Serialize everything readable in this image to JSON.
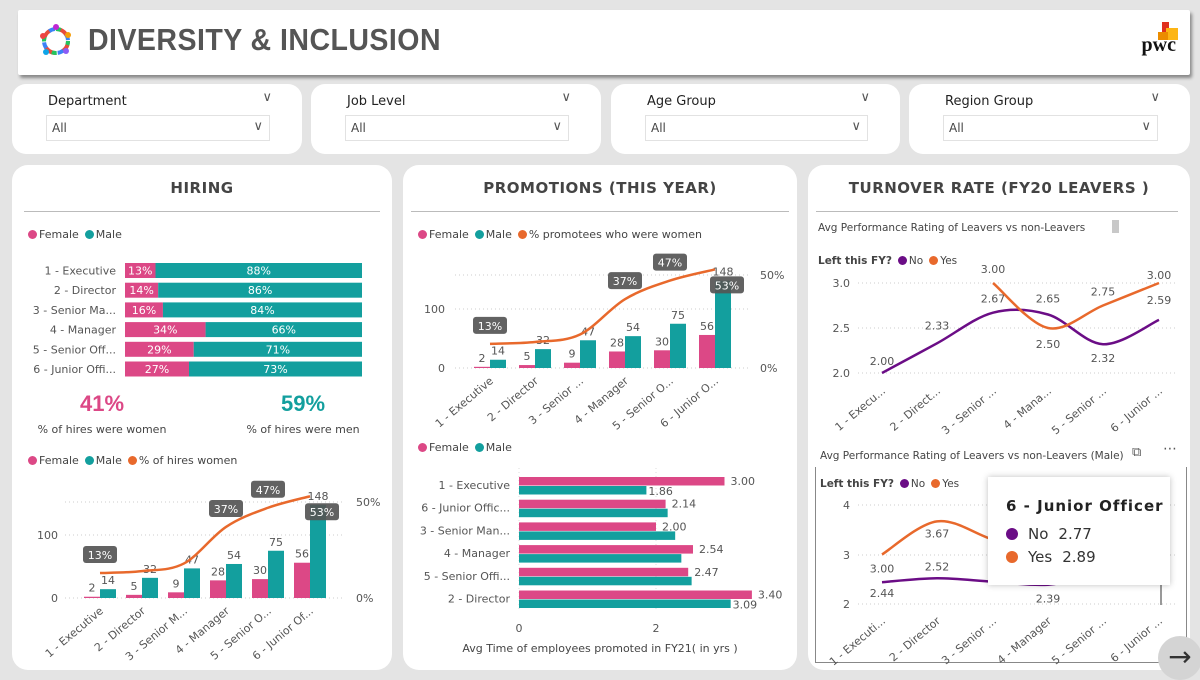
{
  "header": {
    "title": "DIVERSITY & INCLUSION",
    "brand": "pwc"
  },
  "colors": {
    "female": "#DC4886",
    "male": "#139F9E",
    "orange": "#E8692C",
    "purple": "#6B0D86",
    "no": "#6B0D86",
    "yes": "#E8692C"
  },
  "filters": [
    {
      "label": "Department",
      "value": "All"
    },
    {
      "label": "Job Level",
      "value": "All"
    },
    {
      "label": "Age Group",
      "value": "All"
    },
    {
      "label": "Region Group",
      "value": "All"
    }
  ],
  "hiring": {
    "title": "HIRING",
    "legend": [
      "Female",
      "Male"
    ],
    "stacked": {
      "type": "bar",
      "categories": [
        "1 - Executive",
        "2 - Director",
        "3 - Senior Ma...",
        "4 - Manager",
        "5 - Senior Off...",
        "6 - Junior Offi..."
      ],
      "series": [
        {
          "name": "Female",
          "values": [
            13,
            14,
            16,
            34,
            29,
            27
          ]
        },
        {
          "name": "Male",
          "values": [
            88,
            86,
            84,
            66,
            71,
            73
          ]
        }
      ]
    },
    "kpi_women": {
      "value": "41%",
      "label": "% of hires were women"
    },
    "kpi_men": {
      "value": "59%",
      "label": "% of hires were men"
    },
    "combo": {
      "type": "bar",
      "legend": [
        "Female",
        "Male",
        "% of hires women"
      ],
      "categories": [
        "1 - Executive",
        "2 - Director",
        "3 - Senior M...",
        "4 - Manager",
        "5 - Senior O...",
        "6 - Junior Of..."
      ],
      "series": [
        {
          "name": "Female",
          "values": [
            2,
            5,
            9,
            28,
            30,
            56
          ]
        },
        {
          "name": "Male",
          "values": [
            14,
            32,
            47,
            54,
            75,
            148
          ]
        },
        {
          "name": "% of hires women",
          "values": [
            13,
            14,
            18,
            37,
            47,
            53
          ]
        }
      ],
      "pct_labels": [
        "13%",
        "",
        "",
        "37%",
        "47%",
        "53%"
      ],
      "y_ticks": [
        "0",
        "100"
      ],
      "y2_ticks": [
        "0%",
        "50%"
      ]
    }
  },
  "promotions": {
    "title": "PROMOTIONS (THIS YEAR)",
    "combo": {
      "type": "bar",
      "legend": [
        "Female",
        "Male",
        "% promotees who were women"
      ],
      "categories": [
        "1 - Executive",
        "2 - Director",
        "3 - Senior ...",
        "4 - Manager",
        "5 - Senior O...",
        "6 - Junior O..."
      ],
      "series": [
        {
          "name": "Female",
          "values": [
            2,
            5,
            9,
            28,
            30,
            56
          ]
        },
        {
          "name": "Male",
          "values": [
            14,
            32,
            47,
            54,
            75,
            148
          ]
        },
        {
          "name": "% promotees who were women",
          "values": [
            13,
            14,
            18,
            37,
            47,
            53
          ]
        }
      ],
      "pct_labels": [
        "13%",
        "",
        "",
        "37%",
        "47%",
        "53%"
      ],
      "y_ticks": [
        "0",
        "100"
      ],
      "y2_ticks": [
        "0%",
        "50%"
      ]
    },
    "avg_time": {
      "type": "bar",
      "legend": [
        "Female",
        "Male"
      ],
      "categories": [
        "1 - Executive",
        "6 - Junior Offic...",
        "3 - Senior Man...",
        "4 - Manager",
        "5 - Senior Offi...",
        "2 - Director"
      ],
      "series": [
        {
          "name": "Female",
          "values": [
            3.0,
            2.14,
            2.0,
            2.54,
            2.47,
            3.4
          ]
        },
        {
          "name": "Male",
          "values": [
            1.86,
            2.17,
            2.28,
            2.37,
            2.52,
            3.09
          ]
        }
      ],
      "labels_female": [
        "3.00",
        "2.14",
        "2.00",
        "2.54",
        "2.47",
        "3.40"
      ],
      "labels_male": [
        "1.86",
        "",
        "",
        "",
        "",
        "3.09"
      ],
      "x_ticks": [
        "0",
        "2"
      ],
      "xlabel": "Avg Time of employees promoted in FY21( in yrs )"
    }
  },
  "turnover": {
    "title": "TURNOVER RATE (FY20 LEAVERS )",
    "chart1": {
      "type": "line",
      "title": "Avg Performance Rating of Leavers vs non-Leavers",
      "legend_title": "Left this FY?",
      "categories": [
        "1 - Execu...",
        "2 - Direct...",
        "3 - Senior ...",
        "4 - Mana...",
        "5 - Senior ...",
        "6 - Junior ..."
      ],
      "series": [
        {
          "name": "No",
          "values": [
            2.0,
            2.33,
            2.67,
            2.65,
            2.32,
            2.59
          ]
        },
        {
          "name": "Yes",
          "values": [
            null,
            null,
            3.0,
            2.5,
            2.75,
            3.0
          ]
        }
      ],
      "y_ticks": [
        "2.0",
        "2.5",
        "3.0"
      ],
      "ylim": [
        2.0,
        3.0
      ]
    },
    "chart2": {
      "type": "line",
      "title": "Avg Performance Rating of Leavers vs non-Leavers (Male)",
      "legend_title": "Left this FY?",
      "categories": [
        "1 - Executi...",
        "2 - Director",
        "3 - Senior ...",
        "4 - Manager",
        "5 - Senior ...",
        "6 - Junior ..."
      ],
      "series": [
        {
          "name": "No",
          "values": [
            2.44,
            2.52,
            2.45,
            2.39,
            2.6,
            2.77
          ],
          "labels": [
            "2.44",
            "2.52",
            "",
            "2.39",
            "",
            ""
          ]
        },
        {
          "name": "Yes",
          "values": [
            3.0,
            3.67,
            3.3,
            3.0,
            2.9,
            2.89
          ],
          "labels": [
            "3.00",
            "3.67",
            "",
            "",
            "",
            ""
          ]
        }
      ],
      "y_ticks": [
        "2",
        "3",
        "4"
      ],
      "ylim": [
        2,
        4
      ]
    },
    "tooltip": {
      "title": "6 - Junior Officer",
      "rows": [
        {
          "name": "No",
          "value": "2.77"
        },
        {
          "name": "Yes",
          "value": "2.89"
        }
      ]
    }
  }
}
